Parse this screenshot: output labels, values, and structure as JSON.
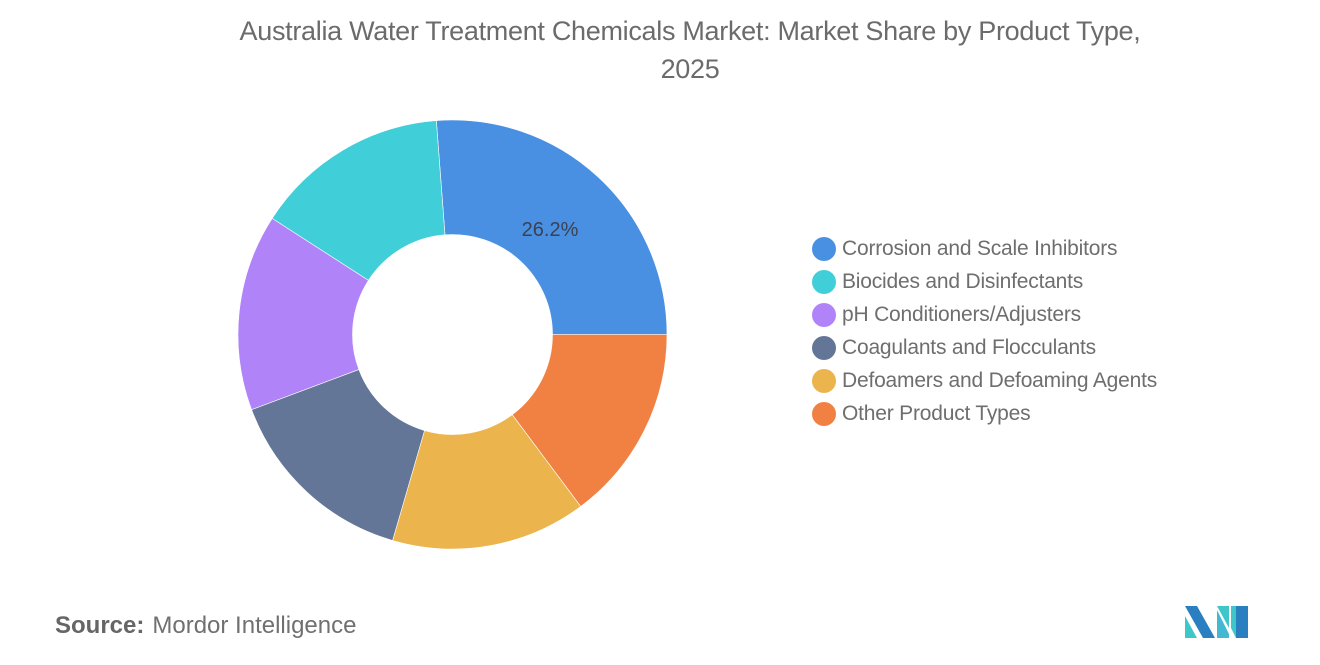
{
  "title": {
    "line1": "Australia Water Treatment Chemicals Market: Market Share by Product Type,",
    "line2": "2025"
  },
  "source": {
    "label": "Source:",
    "value": "Mordor Intelligence"
  },
  "logo": {
    "name": "mordor-intelligence-logo"
  },
  "chart_data": {
    "type": "pie",
    "variant": "donut",
    "title": "Australia Water Treatment Chemicals Market: Market Share by Product Type, 2025",
    "categories": [
      "Corrosion and Scale Inhibitors",
      "Biocides and Disinfectants",
      "pH Conditioners/Adjusters",
      "Coagulants and Flocculants",
      "Defoamers and Defoaming Agents",
      "Other Product Types"
    ],
    "values": [
      26.2,
      14.7,
      14.8,
      14.8,
      14.7,
      14.8
    ],
    "colors": [
      "#4A90E2",
      "#40CED8",
      "#B083F9",
      "#647698",
      "#EBB44C",
      "#F08143"
    ],
    "data_labels": [
      {
        "category": "Corrosion and Scale Inhibitors",
        "text": "26.2%"
      }
    ],
    "legend_position": "right",
    "unit": "%"
  },
  "legend": {
    "items": [
      {
        "label": "Corrosion and Scale Inhibitors",
        "color": "#4A90E2"
      },
      {
        "label": "Biocides and Disinfectants",
        "color": "#40CED8"
      },
      {
        "label": "pH Conditioners/Adjusters",
        "color": "#B083F9"
      },
      {
        "label": "Coagulants and Flocculants",
        "color": "#647698"
      },
      {
        "label": "Defoamers and Defoaming Agents",
        "color": "#EBB44C"
      },
      {
        "label": "Other Product Types",
        "color": "#F08143"
      }
    ]
  }
}
